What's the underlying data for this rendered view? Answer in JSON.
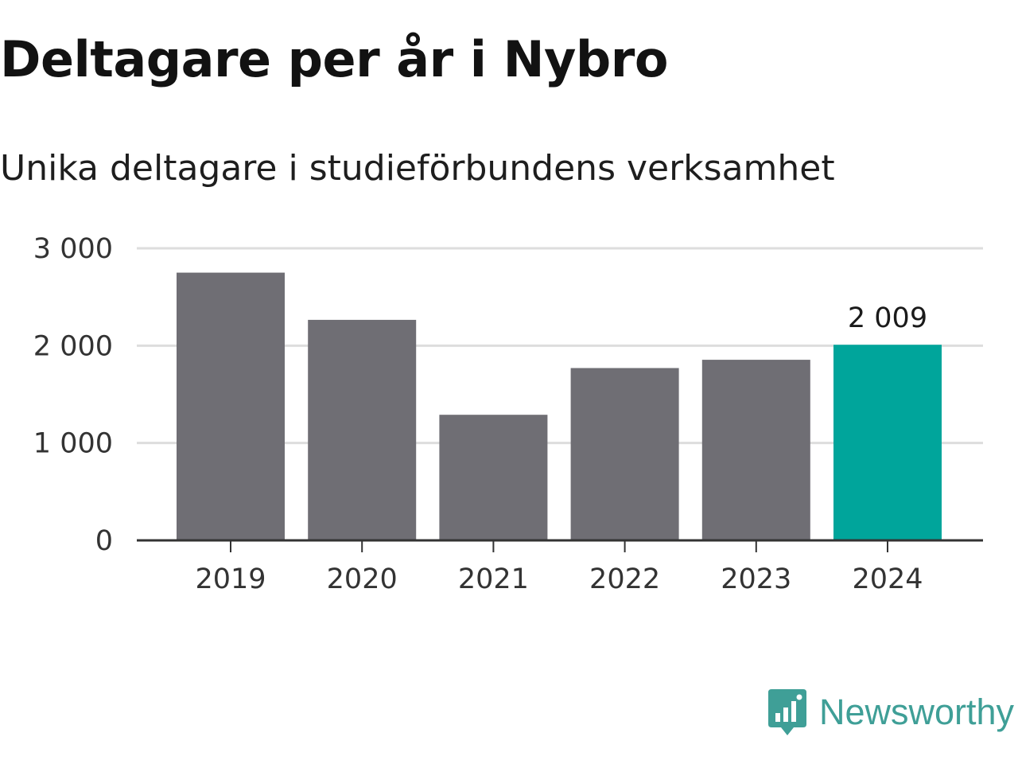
{
  "chart_data": {
    "type": "bar",
    "title": "Deltagare per år i Nybro",
    "subtitle": "Unika deltagare i studieförbundens verksamhet",
    "categories": [
      "2019",
      "2020",
      "2021",
      "2022",
      "2023",
      "2024"
    ],
    "values": [
      2750,
      2265,
      1290,
      1770,
      1855,
      2009
    ],
    "ylim": [
      0,
      3000
    ],
    "yticks": [
      {
        "value": 0,
        "label": "0"
      },
      {
        "value": 1000,
        "label": "1 000"
      },
      {
        "value": 2000,
        "label": "2 000"
      },
      {
        "value": 3000,
        "label": "3 000"
      }
    ],
    "grid": true,
    "highlight_index": 5,
    "data_labels": [
      {
        "index": 5,
        "label": "2 009"
      }
    ],
    "colors": {
      "bar": "#6f6e74",
      "highlight": "#00a59b",
      "grid": "#dddddd",
      "axis": "#333333"
    }
  },
  "brand": {
    "name": "Newsworthy",
    "icon": "bar-chart-speech-bubble-icon",
    "color": "#3f9f97"
  }
}
